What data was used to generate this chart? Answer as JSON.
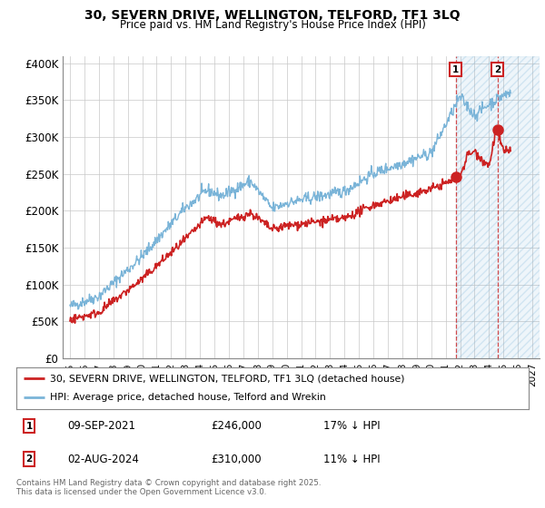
{
  "title_line1": "30, SEVERN DRIVE, WELLINGTON, TELFORD, TF1 3LQ",
  "title_line2": "Price paid vs. HM Land Registry's House Price Index (HPI)",
  "ylabel_ticks": [
    "£0",
    "£50K",
    "£100K",
    "£150K",
    "£200K",
    "£250K",
    "£300K",
    "£350K",
    "£400K"
  ],
  "ytick_values": [
    0,
    50000,
    100000,
    150000,
    200000,
    250000,
    300000,
    350000,
    400000
  ],
  "ylim": [
    0,
    410000
  ],
  "xlim_start": 1994.5,
  "xlim_end": 2027.5,
  "hpi_color": "#7ab4d8",
  "price_color": "#cc2222",
  "sale1_date": "09-SEP-2021",
  "sale1_price": 246000,
  "sale1_pct": "17% ↓ HPI",
  "sale2_date": "02-AUG-2024",
  "sale2_price": 310000,
  "sale2_pct": "11% ↓ HPI",
  "legend_label1": "30, SEVERN DRIVE, WELLINGTON, TELFORD, TF1 3LQ (detached house)",
  "legend_label2": "HPI: Average price, detached house, Telford and Wrekin",
  "footer": "Contains HM Land Registry data © Crown copyright and database right 2025.\nThis data is licensed under the Open Government Licence v3.0.",
  "sale1_x": 2021.69,
  "sale2_x": 2024.58,
  "shade_start": 2021.69,
  "shade_end": 2027.5
}
